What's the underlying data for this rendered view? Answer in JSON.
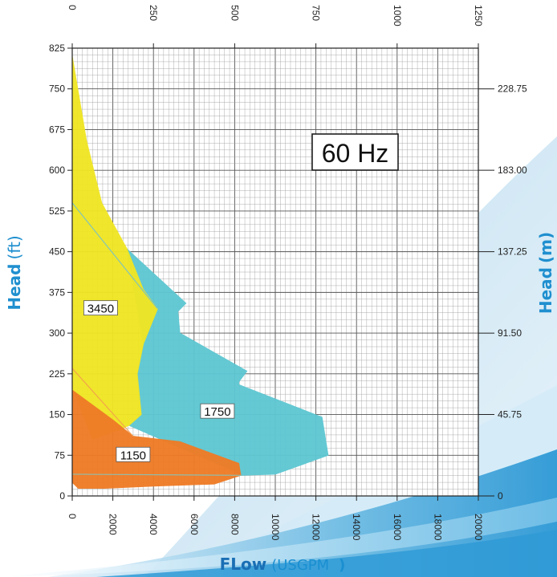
{
  "chart_data": {
    "type": "area",
    "frequency_label": "60 Hz",
    "ylabel_left": {
      "main": "Head",
      "unit": "(ft)"
    },
    "ylabel_right": {
      "main": "Head",
      "unit": "(m)"
    },
    "xlabel": {
      "main": "FLow",
      "unit": "(USGPM",
      "close": ")"
    },
    "x_bottom": {
      "range": [
        0,
        20000
      ],
      "ticks": [
        "0",
        "2000",
        "4000",
        "6000",
        "8000",
        "10000",
        "12000",
        "14000",
        "16000",
        "18000",
        "20000"
      ]
    },
    "x_top": {
      "range": [
        0,
        1250
      ],
      "ticks": [
        "0",
        "250",
        "500",
        "750",
        "1000",
        "1250"
      ]
    },
    "y_left": {
      "range": [
        0,
        825
      ],
      "ticks": [
        "0",
        "75",
        "150",
        "225",
        "300",
        "375",
        "450",
        "525",
        "600",
        "675",
        "750",
        "825"
      ]
    },
    "y_right": {
      "ticks": [
        {
          "label": "0",
          "ft": 0
        },
        {
          "label": "45.75",
          "ft": 150
        },
        {
          "label": "91.50",
          "ft": 300
        },
        {
          "label": "137.25",
          "ft": 450
        },
        {
          "label": "183.00",
          "ft": 600
        },
        {
          "label": "228.75",
          "ft": 750
        }
      ]
    },
    "series": [
      {
        "name": "1750",
        "color": "#5ec7d2",
        "label_at": [
          7150,
          155
        ],
        "polygon": [
          [
            2700,
            455
          ],
          [
            5600,
            355
          ],
          [
            5200,
            340
          ],
          [
            5300,
            300
          ],
          [
            8600,
            230
          ],
          [
            8200,
            210
          ],
          [
            8200,
            205
          ],
          [
            12300,
            145
          ],
          [
            12600,
            75
          ],
          [
            10000,
            40
          ],
          [
            8300,
            38
          ],
          [
            8000,
            45
          ],
          [
            2800,
            130
          ],
          [
            3400,
            150
          ],
          [
            3200,
            225
          ],
          [
            3500,
            280
          ]
        ]
      },
      {
        "name": "3450",
        "color": "#f0e624",
        "label_at": [
          1400,
          345
        ],
        "polygon": [
          [
            0,
            810
          ],
          [
            700,
            655
          ],
          [
            1450,
            540
          ],
          [
            2700,
            455
          ],
          [
            3500,
            380
          ],
          [
            4200,
            345
          ],
          [
            3500,
            280
          ],
          [
            3200,
            225
          ],
          [
            3400,
            150
          ],
          [
            2800,
            130
          ],
          [
            2200,
            120
          ],
          [
            1000,
            105
          ],
          [
            0,
            200
          ]
        ]
      },
      {
        "name": "1150",
        "color": "#ef7b26",
        "label_at": [
          3000,
          75
        ],
        "polygon": [
          [
            0,
            195
          ],
          [
            2000,
            140
          ],
          [
            3000,
            110
          ],
          [
            5300,
            100
          ],
          [
            8200,
            60
          ],
          [
            8300,
            38
          ],
          [
            7000,
            22
          ],
          [
            4000,
            18
          ],
          [
            1600,
            14
          ],
          [
            300,
            14
          ],
          [
            0,
            25
          ]
        ]
      }
    ]
  }
}
